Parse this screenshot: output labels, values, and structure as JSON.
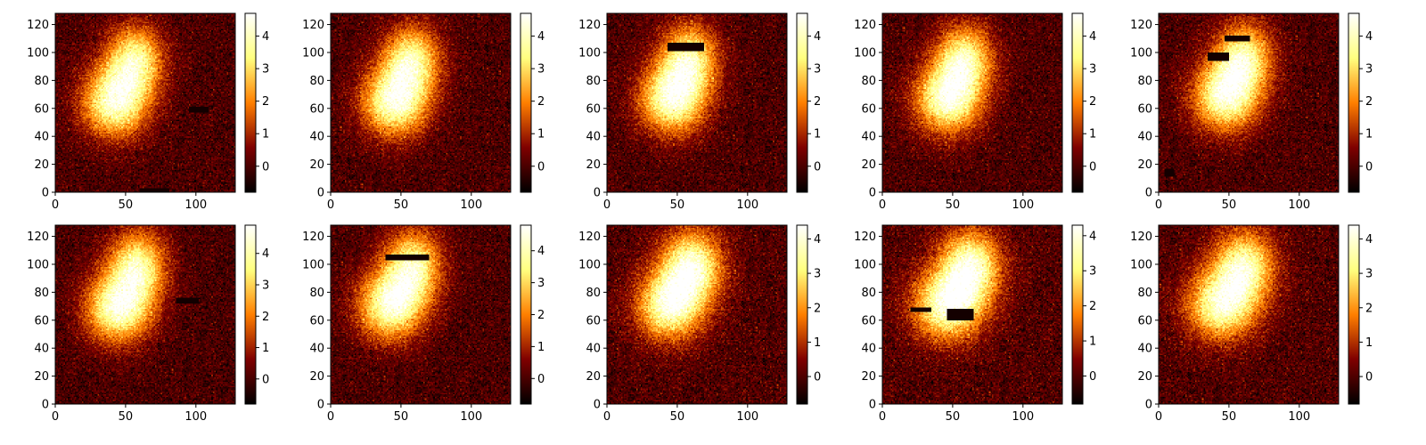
{
  "figure": {
    "colormap": "afmhot",
    "colors": {
      "axis": "#000000",
      "background": "#ffffff",
      "colormap_stops": [
        "#000000",
        "#7f0000",
        "#ff7f00",
        "#ffff7f",
        "#ffffff"
      ]
    }
  },
  "chart_data": [
    {
      "type": "heatmap",
      "title": "",
      "xlabel": "",
      "ylabel": "",
      "xlim": [
        0,
        128
      ],
      "ylim": [
        0,
        128
      ],
      "x_ticks": [
        "0",
        "50",
        "100"
      ],
      "y_ticks": [
        "0",
        "20",
        "40",
        "60",
        "80",
        "100",
        "120"
      ],
      "colorbar": {
        "range": [
          -0.8,
          4.7
        ],
        "ticks": [
          "0",
          "1",
          "2",
          "3",
          "4"
        ]
      },
      "blobs": [
        {
          "x": 42,
          "y": 64,
          "rx": 16,
          "ry": 17,
          "amp": 4.2
        },
        {
          "x": 56,
          "y": 94,
          "rx": 14,
          "ry": 17,
          "amp": 3.6
        }
      ],
      "masked_regions": [
        {
          "x0": 95,
          "x1": 108,
          "y0": 57,
          "y1": 60
        },
        {
          "x0": 60,
          "x1": 80,
          "y0": 0,
          "y1": 2
        }
      ]
    },
    {
      "type": "heatmap",
      "title": "",
      "xlabel": "",
      "ylabel": "",
      "xlim": [
        0,
        128
      ],
      "ylim": [
        0,
        128
      ],
      "x_ticks": [
        "0",
        "50",
        "100"
      ],
      "y_ticks": [
        "0",
        "20",
        "40",
        "60",
        "80",
        "100",
        "120"
      ],
      "colorbar": {
        "range": [
          -0.8,
          4.7
        ],
        "ticks": [
          "0",
          "1",
          "2",
          "3",
          "4"
        ]
      },
      "blobs": [
        {
          "x": 45,
          "y": 64,
          "rx": 16,
          "ry": 17,
          "amp": 4.2
        },
        {
          "x": 57,
          "y": 94,
          "rx": 14,
          "ry": 17,
          "amp": 3.6
        }
      ],
      "masked_regions": []
    },
    {
      "type": "heatmap",
      "title": "",
      "xlabel": "",
      "ylabel": "",
      "xlim": [
        0,
        128
      ],
      "ylim": [
        0,
        128
      ],
      "x_ticks": [
        "0",
        "50",
        "100"
      ],
      "y_ticks": [
        "0",
        "20",
        "40",
        "60",
        "80",
        "100",
        "120"
      ],
      "colorbar": {
        "range": [
          -0.8,
          4.7
        ],
        "ticks": [
          "0",
          "1",
          "2",
          "3",
          "4"
        ]
      },
      "blobs": [
        {
          "x": 46,
          "y": 66,
          "rx": 16,
          "ry": 17,
          "amp": 4.2
        },
        {
          "x": 58,
          "y": 95,
          "rx": 14,
          "ry": 17,
          "amp": 3.6
        }
      ],
      "masked_regions": [
        {
          "x0": 43,
          "x1": 68,
          "y0": 101,
          "y1": 106
        }
      ]
    },
    {
      "type": "heatmap",
      "title": "",
      "xlabel": "",
      "ylabel": "",
      "xlim": [
        0,
        128
      ],
      "ylim": [
        0,
        128
      ],
      "x_ticks": [
        "0",
        "50",
        "100"
      ],
      "y_ticks": [
        "0",
        "20",
        "40",
        "60",
        "80",
        "100",
        "120"
      ],
      "colorbar": {
        "range": [
          -0.8,
          4.7
        ],
        "ticks": [
          "0",
          "1",
          "2",
          "3",
          "4"
        ]
      },
      "blobs": [
        {
          "x": 46,
          "y": 66,
          "rx": 16,
          "ry": 17,
          "amp": 4.2
        },
        {
          "x": 58,
          "y": 95,
          "rx": 14,
          "ry": 17,
          "amp": 3.6
        }
      ],
      "masked_regions": []
    },
    {
      "type": "heatmap",
      "title": "",
      "xlabel": "",
      "ylabel": "",
      "xlim": [
        0,
        128
      ],
      "ylim": [
        0,
        128
      ],
      "x_ticks": [
        "0",
        "50",
        "100"
      ],
      "y_ticks": [
        "0",
        "20",
        "40",
        "60",
        "80",
        "100",
        "120"
      ],
      "colorbar": {
        "range": [
          -0.8,
          4.7
        ],
        "ticks": [
          "0",
          "1",
          "2",
          "3",
          "4"
        ]
      },
      "blobs": [
        {
          "x": 47,
          "y": 68,
          "rx": 16,
          "ry": 17,
          "amp": 4.2
        },
        {
          "x": 60,
          "y": 96,
          "rx": 14,
          "ry": 17,
          "amp": 3.6
        }
      ],
      "masked_regions": [
        {
          "x0": 47,
          "x1": 64,
          "y0": 108,
          "y1": 111
        },
        {
          "x0": 35,
          "x1": 49,
          "y0": 94,
          "y1": 99
        },
        {
          "x0": 4,
          "x1": 10,
          "y0": 11,
          "y1": 16
        }
      ]
    },
    {
      "type": "heatmap",
      "title": "",
      "xlabel": "",
      "ylabel": "",
      "xlim": [
        0,
        128
      ],
      "ylim": [
        0,
        128
      ],
      "x_ticks": [
        "0",
        "50",
        "100"
      ],
      "y_ticks": [
        "0",
        "20",
        "40",
        "60",
        "80",
        "100",
        "120"
      ],
      "colorbar": {
        "range": [
          -0.8,
          4.9
        ],
        "ticks": [
          "0",
          "1",
          "2",
          "3",
          "4"
        ]
      },
      "blobs": [
        {
          "x": 44,
          "y": 68,
          "rx": 16,
          "ry": 17,
          "amp": 4.3
        },
        {
          "x": 58,
          "y": 98,
          "rx": 14,
          "ry": 18,
          "amp": 3.8
        }
      ],
      "masked_regions": [
        {
          "x0": 86,
          "x1": 101,
          "y0": 72,
          "y1": 75
        }
      ]
    },
    {
      "type": "heatmap",
      "title": "",
      "xlabel": "",
      "ylabel": "",
      "xlim": [
        0,
        128
      ],
      "ylim": [
        0,
        128
      ],
      "x_ticks": [
        "0",
        "50",
        "100"
      ],
      "y_ticks": [
        "0",
        "20",
        "40",
        "60",
        "80",
        "100",
        "120"
      ],
      "colorbar": {
        "range": [
          -0.8,
          4.8
        ],
        "ticks": [
          "0",
          "1",
          "2",
          "3",
          "4"
        ]
      },
      "blobs": [
        {
          "x": 42,
          "y": 70,
          "rx": 16,
          "ry": 17,
          "amp": 4.2
        },
        {
          "x": 58,
          "y": 98,
          "rx": 14,
          "ry": 18,
          "amp": 3.8
        }
      ],
      "masked_regions": [
        {
          "x0": 39,
          "x1": 69,
          "y0": 103,
          "y1": 106
        }
      ]
    },
    {
      "type": "heatmap",
      "title": "",
      "xlabel": "",
      "ylabel": "",
      "xlim": [
        0,
        128
      ],
      "ylim": [
        0,
        128
      ],
      "x_ticks": [
        "0",
        "50",
        "100"
      ],
      "y_ticks": [
        "0",
        "20",
        "40",
        "60",
        "80",
        "100",
        "120"
      ],
      "colorbar": {
        "range": [
          -0.8,
          4.4
        ],
        "ticks": [
          "0",
          "1",
          "2",
          "3",
          "4"
        ]
      },
      "blobs": [
        {
          "x": 44,
          "y": 70,
          "rx": 16,
          "ry": 17,
          "amp": 3.9
        },
        {
          "x": 60,
          "y": 98,
          "rx": 15,
          "ry": 18,
          "amp": 3.9
        }
      ],
      "masked_regions": []
    },
    {
      "type": "heatmap",
      "title": "",
      "xlabel": "",
      "ylabel": "",
      "xlim": [
        0,
        128
      ],
      "ylim": [
        0,
        128
      ],
      "x_ticks": [
        "0",
        "50",
        "100"
      ],
      "y_ticks": [
        "0",
        "20",
        "40",
        "60",
        "80",
        "100",
        "120"
      ],
      "colorbar": {
        "range": [
          -0.8,
          4.3
        ],
        "ticks": [
          "0",
          "1",
          "2",
          "3",
          "4"
        ]
      },
      "blobs": [
        {
          "x": 46,
          "y": 70,
          "rx": 17,
          "ry": 17,
          "amp": 3.9
        },
        {
          "x": 62,
          "y": 98,
          "rx": 15,
          "ry": 18,
          "amp": 3.8
        }
      ],
      "masked_regions": [
        {
          "x0": 46,
          "x1": 64,
          "y0": 60,
          "y1": 67
        },
        {
          "x0": 20,
          "x1": 34,
          "y0": 66,
          "y1": 68
        }
      ]
    },
    {
      "type": "heatmap",
      "title": "",
      "xlabel": "",
      "ylabel": "",
      "xlim": [
        0,
        128
      ],
      "ylim": [
        0,
        128
      ],
      "x_ticks": [
        "0",
        "50",
        "100"
      ],
      "y_ticks": [
        "0",
        "20",
        "40",
        "60",
        "80",
        "100",
        "120"
      ],
      "colorbar": {
        "range": [
          -0.8,
          4.4
        ],
        "ticks": [
          "0",
          "1",
          "2",
          "3",
          "4"
        ]
      },
      "blobs": [
        {
          "x": 44,
          "y": 70,
          "rx": 17,
          "ry": 17,
          "amp": 3.7
        },
        {
          "x": 60,
          "y": 98,
          "rx": 15,
          "ry": 18,
          "amp": 3.6
        }
      ],
      "masked_regions": []
    }
  ]
}
